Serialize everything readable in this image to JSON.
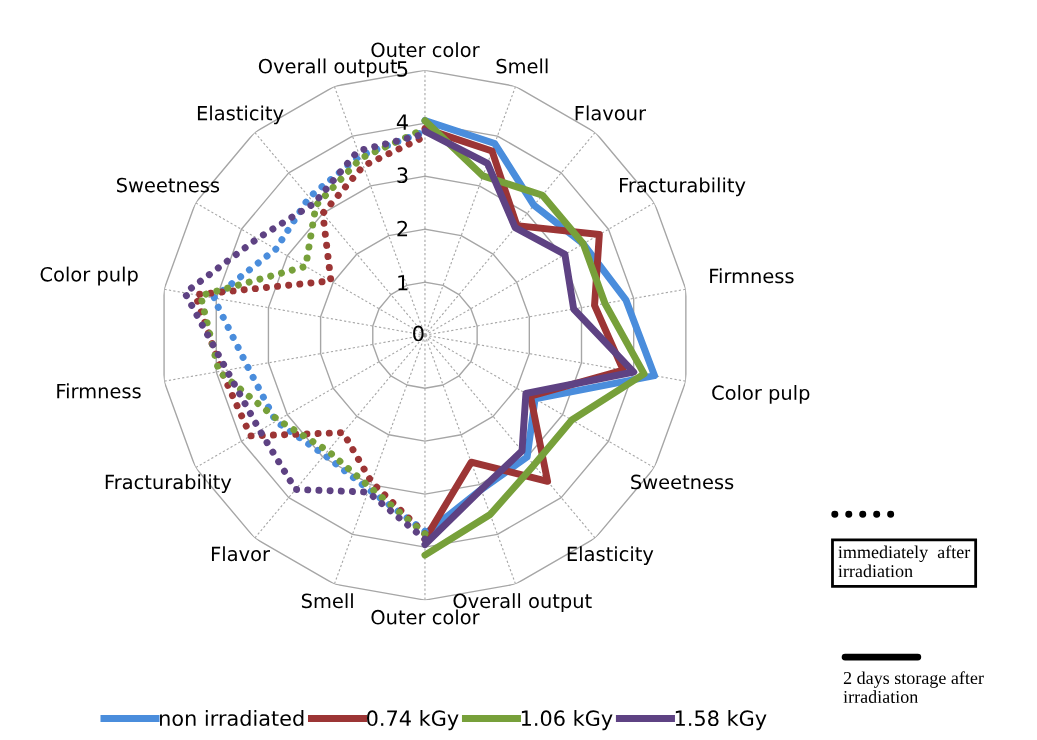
{
  "chart_data": {
    "type": "radar",
    "categories": [
      "Outer color",
      "Smell",
      "Flavour",
      "Fracturability",
      "Firmness",
      "Color pulp",
      "Sweetness",
      "Elasticity",
      "Overall output",
      "Outer color",
      "Smell",
      "Flavor",
      "Fracturability",
      "Firmness",
      "Color pulp",
      "Sweetness",
      "Elasticity",
      "Overall output"
    ],
    "ylim": [
      0,
      5
    ],
    "yticks": [
      0,
      1,
      2,
      3,
      4,
      5
    ],
    "grid": true,
    "legend": "bottom",
    "marker": "none",
    "series": [
      {
        "name": "non irradiated",
        "color": "#4a8ddc",
        "line_style": "solid",
        "values": [
          4.05,
          3.85,
          3.2,
          3.45,
          3.85,
          4.4,
          2.4,
          3.0,
          3.1,
          3.75,
          null,
          null,
          null,
          null,
          null,
          null,
          null,
          null
        ]
      },
      {
        "name": "0.74 kGy",
        "color": "#9c3535",
        "line_style": "solid",
        "values": [
          3.9,
          3.7,
          2.7,
          3.8,
          3.25,
          3.8,
          2.3,
          3.6,
          2.55,
          3.85,
          null,
          null,
          null,
          null,
          null,
          null,
          null,
          null
        ]
      },
      {
        "name": "1.06 kGy",
        "color": "#77a03a",
        "line_style": "solid",
        "values": [
          4.05,
          3.2,
          3.45,
          3.45,
          3.45,
          4.2,
          3.2,
          3.2,
          3.6,
          4.15,
          null,
          null,
          null,
          null,
          null,
          null,
          null,
          null
        ]
      },
      {
        "name": "1.58 kGy",
        "color": "#5e4283",
        "line_style": "solid",
        "values": [
          3.85,
          3.45,
          2.65,
          3.05,
          2.85,
          4.0,
          2.2,
          2.85,
          3.1,
          3.95,
          null,
          null,
          null,
          null,
          null,
          null,
          null,
          null
        ]
      },
      {
        "color": "#4a8ddc",
        "line_style": "dotted",
        "values": [
          3.85,
          null,
          null,
          null,
          null,
          null,
          null,
          null,
          null,
          3.7,
          3.1,
          2.95,
          3.25,
          3.4,
          4.05,
          3.25,
          3.4,
          3.6
        ]
      },
      {
        "color": "#9c3535",
        "line_style": "dotted",
        "values": [
          3.75,
          null,
          null,
          null,
          null,
          null,
          null,
          null,
          null,
          3.75,
          2.95,
          2.4,
          3.8,
          3.9,
          4.4,
          2.05,
          3.0,
          3.4
        ]
      },
      {
        "color": "#77a03a",
        "line_style": "dotted",
        "values": [
          3.9,
          null,
          null,
          null,
          null,
          null,
          null,
          null,
          null,
          3.75,
          3.05,
          2.85,
          3.2,
          3.95,
          4.3,
          2.6,
          3.2,
          3.55
        ]
      },
      {
        "color": "#5e4283",
        "line_style": "dotted",
        "values": [
          3.8,
          null,
          null,
          null,
          null,
          null,
          null,
          null,
          null,
          3.85,
          3.15,
          3.8,
          3.6,
          3.8,
          4.6,
          3.65,
          3.25,
          3.7
        ]
      }
    ],
    "annotations": [
      "immediately  after irradiation",
      "2 days storage after irradiation"
    ]
  }
}
